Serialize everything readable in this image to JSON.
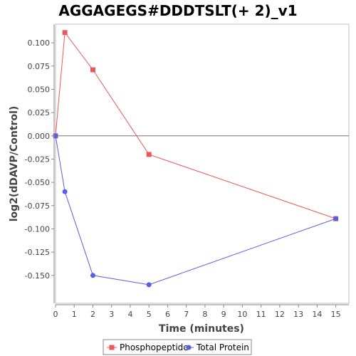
{
  "chart_data": {
    "type": "line",
    "title": "AGGAGEGS#DDDTSLT(+ 2)_v1",
    "xlabel": "Time (minutes)",
    "ylabel": "log2(dDAVP/Control)",
    "xlim": [
      0,
      15.7
    ],
    "ylim": [
      -0.18,
      0.12
    ],
    "xticks": [
      0,
      1,
      2,
      3,
      4,
      5,
      6,
      7,
      8,
      9,
      10,
      11,
      12,
      13,
      14,
      15
    ],
    "yticks": [
      0.1,
      0.075,
      0.05,
      0.025,
      0.0,
      -0.025,
      -0.05,
      -0.075,
      -0.1,
      -0.125,
      -0.15
    ],
    "ytick_labels": [
      "0.100",
      "0.075",
      "0.050",
      "0.025",
      "0.000",
      "-0.025",
      "-0.050",
      "-0.075",
      "-0.100",
      "-0.125",
      "-0.150"
    ],
    "grid": false,
    "legend_position": "bottom",
    "series": [
      {
        "name": "Phosphopeptide",
        "color": "#e8595b",
        "marker": "square",
        "x": [
          0,
          0.5,
          2,
          5,
          15
        ],
        "y": [
          0.0,
          0.111,
          0.071,
          -0.02,
          -0.089
        ]
      },
      {
        "name": "Total Protein",
        "color": "#5b5ee0",
        "marker": "circle",
        "x": [
          0,
          0.5,
          2,
          5,
          15
        ],
        "y": [
          0.0,
          -0.06,
          -0.15,
          -0.16,
          -0.089
        ]
      }
    ]
  }
}
